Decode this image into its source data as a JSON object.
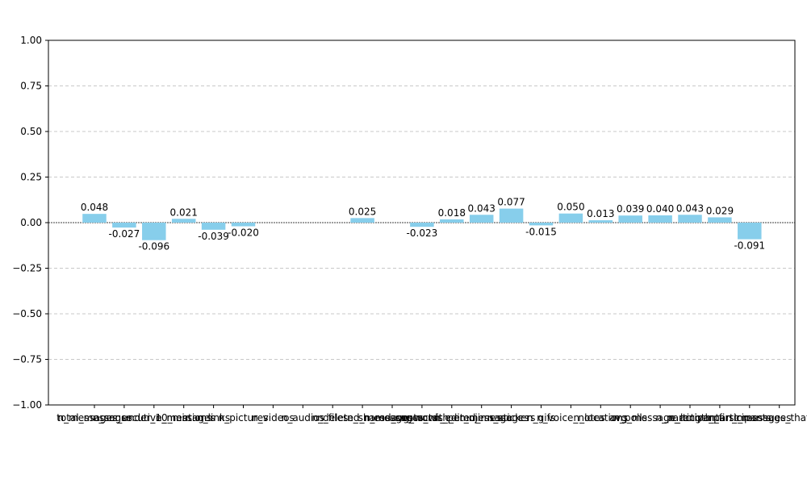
{
  "chart_data": {
    "type": "bar",
    "title": "",
    "xlabel": "",
    "ylabel": "",
    "ylim": [
      -1.0,
      1.0
    ],
    "yticks": [
      -1.0,
      -0.75,
      -0.5,
      -0.25,
      0.0,
      0.25,
      0.5,
      0.75,
      1.0
    ],
    "ytick_labels": [
      "−1.00",
      "−0.75",
      "−0.50",
      "−0.25",
      "0.00",
      "0.25",
      "0.50",
      "0.75",
      "1.00"
    ],
    "grid": "y-dashed",
    "bar_color": "#87ceeb",
    "categories": [
      "total_messages",
      "n_messages_under_10_min",
      "n_consecutive_messages",
      "n_mentions",
      "n_links",
      "n_pictures",
      "n_videos",
      "n_audios",
      "n_files",
      "n_deleted_messages",
      "n_shared_contacts",
      "n_messages_with_emoji",
      "avg_words_per_message",
      "n_edited_messages",
      "n_stickers",
      "n_gifs",
      "n_voice_notes",
      "n_locations",
      "n_polls",
      "avg_message_length",
      "n_participants",
      "n_active_participants",
      "n_first_messages",
      "n_messages_that_day"
    ],
    "values": [
      0.048,
      -0.027,
      -0.096,
      0.021,
      -0.039,
      -0.02,
      null,
      null,
      null,
      0.025,
      null,
      -0.023,
      0.018,
      0.043,
      0.077,
      -0.015,
      0.05,
      0.013,
      0.039,
      0.04,
      0.043,
      0.029,
      -0.091,
      null
    ],
    "value_labels": [
      "0.048",
      "-0.027",
      "-0.096",
      "0.021",
      "-0.039",
      "-0.020",
      "",
      "",
      "",
      "0.025",
      "",
      "-0.023",
      "0.018",
      "0.043",
      "0.077",
      "-0.015",
      "0.050",
      "0.013",
      "0.039",
      "0.040",
      "0.043",
      "0.029",
      "-0.091",
      ""
    ]
  }
}
